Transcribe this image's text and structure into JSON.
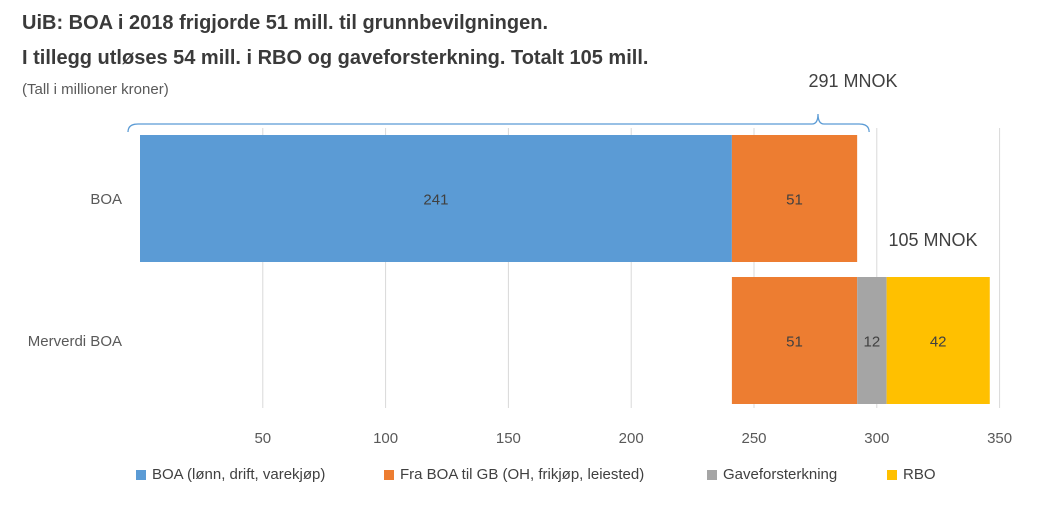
{
  "title_line1": "UiB: BOA i 2018 frigjorde 51 mill. til grunnbevilgningen.",
  "title_line2": "I tillegg utløses 54 mill. i RBO og gaveforsterkning. Totalt 105 mill.",
  "subtitle": "(Tall i millioner kroner)",
  "annotations": {
    "total_boa": "291 MNOK",
    "total_merverdi": "105 MNOK"
  },
  "chart_data": {
    "type": "bar",
    "orientation": "horizontal",
    "stacked": true,
    "categories": [
      "BOA",
      "Merverdi BOA"
    ],
    "series": [
      {
        "name": "BOA (lønn, drift, varekjøp)",
        "color": "#5b9bd5",
        "values": [
          241,
          0
        ]
      },
      {
        "name": "Fra BOA til GB (OH, frikjøp, leiested)",
        "color": "#ed7d31",
        "values": [
          51,
          51
        ]
      },
      {
        "name": "Gaveforsterkning",
        "color": "#a5a5a5",
        "values": [
          0,
          12
        ]
      },
      {
        "name": "RBO",
        "color": "#ffc000",
        "values": [
          0,
          42
        ]
      }
    ],
    "offsets": [
      0,
      241
    ],
    "xticks": [
      50,
      100,
      150,
      200,
      250,
      300,
      350
    ],
    "xlim": [
      0,
      350
    ],
    "grid": true,
    "legend_position": "bottom"
  }
}
